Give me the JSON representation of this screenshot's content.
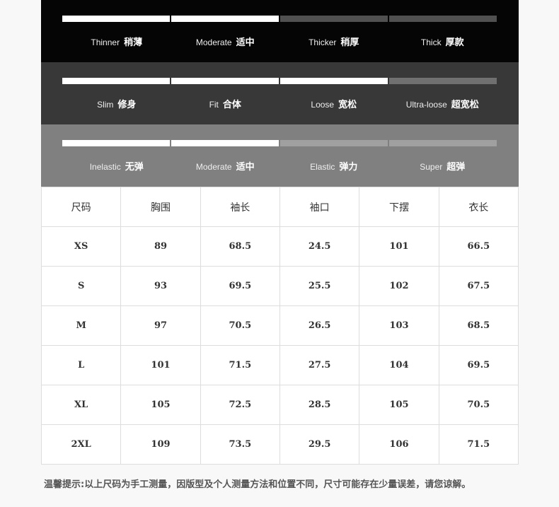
{
  "colors": {
    "fill": "#ffffff"
  },
  "attributes": [
    {
      "name": "thickness",
      "bg": "#050505",
      "empty": "#505050",
      "level": 2,
      "options": [
        {
          "en": "Thinner",
          "zh": "稍薄"
        },
        {
          "en": "Moderate",
          "zh": "适中"
        },
        {
          "en": "Thicker",
          "zh": "稍厚"
        },
        {
          "en": "Thick",
          "zh": "厚款"
        }
      ]
    },
    {
      "name": "fit",
      "bg": "#383838",
      "empty": "#707070",
      "level": 3,
      "options": [
        {
          "en": "Slim",
          "zh": "修身"
        },
        {
          "en": "Fit",
          "zh": "合体"
        },
        {
          "en": "Loose",
          "zh": "宽松"
        },
        {
          "en": "Ultra-loose",
          "zh": "超宽松"
        }
      ]
    },
    {
      "name": "elasticity",
      "bg": "#808080",
      "empty": "#a0a0a0",
      "level": 2,
      "options": [
        {
          "en": "Inelastic",
          "zh": "无弹"
        },
        {
          "en": "Moderate",
          "zh": "适中"
        },
        {
          "en": "Elastic",
          "zh": "弹力"
        },
        {
          "en": "Super",
          "zh": "超弹"
        }
      ]
    }
  ],
  "size_table": {
    "headers": [
      "尺码",
      "胸围",
      "袖长",
      "袖口",
      "下摆",
      "衣长"
    ],
    "rows": [
      [
        "XS",
        "89",
        "68.5",
        "24.5",
        "101",
        "66.5"
      ],
      [
        "S",
        "93",
        "69.5",
        "25.5",
        "102",
        "67.5"
      ],
      [
        "M",
        "97",
        "70.5",
        "26.5",
        "103",
        "68.5"
      ],
      [
        "L",
        "101",
        "71.5",
        "27.5",
        "104",
        "69.5"
      ],
      [
        "XL",
        "105",
        "72.5",
        "28.5",
        "105",
        "70.5"
      ],
      [
        "2XL",
        "109",
        "73.5",
        "29.5",
        "106",
        "71.5"
      ]
    ]
  },
  "note": "温馨提示:以上尺码为手工测量，因版型及个人测量方法和位置不同，尺寸可能存在少量误差，请您谅解。"
}
